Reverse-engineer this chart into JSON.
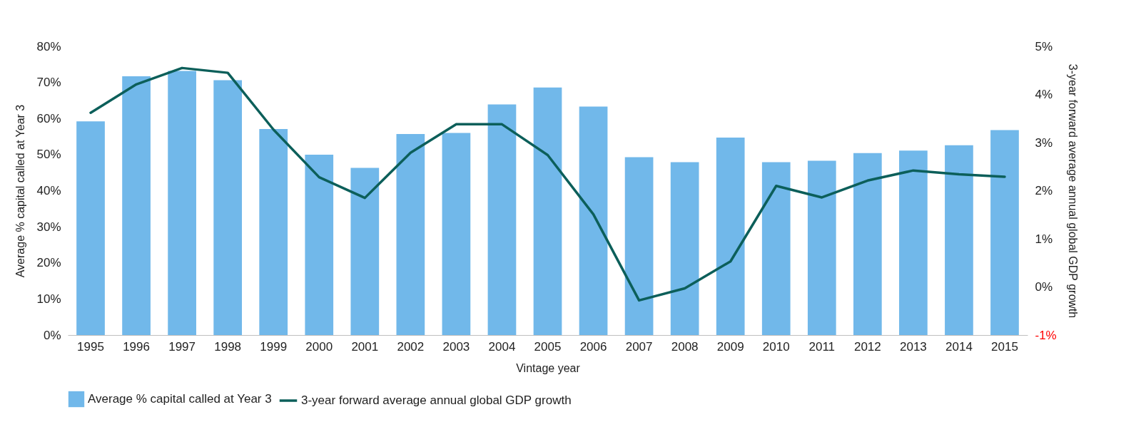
{
  "chart_data": {
    "type": "bar",
    "xlabel": "Vintage year",
    "ylabel": "Average % capital called at Year 3",
    "y2label": "3-year forward average annual global GDP growth",
    "categories": [
      "1995",
      "1996",
      "1997",
      "1998",
      "1999",
      "2000",
      "2001",
      "2002",
      "2003",
      "2004",
      "2005",
      "2006",
      "2007",
      "2008",
      "2009",
      "2010",
      "2011",
      "2012",
      "2013",
      "2014",
      "2015"
    ],
    "series": [
      {
        "name": "Average % capital called at Year 3",
        "color": "#71b8ea",
        "values": [
          59.2,
          71.7,
          73.2,
          70.6,
          57.1,
          50.0,
          46.3,
          55.7,
          56.0,
          63.9,
          68.6,
          63.3,
          49.3,
          47.9,
          54.7,
          47.9,
          48.3,
          50.4,
          51.1,
          52.6,
          56.8
        ]
      },
      {
        "name": "3-year forward average annual global GDP growth",
        "type": "line",
        "axis": "y2",
        "color": "#0c5f5a",
        "values": [
          3.62,
          4.21,
          4.55,
          4.45,
          3.27,
          2.28,
          1.85,
          2.79,
          3.38,
          3.38,
          2.74,
          1.51,
          -0.28,
          -0.03,
          0.53,
          2.1,
          1.86,
          2.21,
          2.42,
          2.34,
          2.29
        ]
      }
    ],
    "ylim": [
      0,
      80
    ],
    "yticks": [
      {
        "value": 0,
        "label": "0%"
      },
      {
        "value": 10,
        "label": "10%"
      },
      {
        "value": 20,
        "label": "20%"
      },
      {
        "value": 30,
        "label": "30%"
      },
      {
        "value": 40,
        "label": "40%"
      },
      {
        "value": 50,
        "label": "50%"
      },
      {
        "value": 60,
        "label": "60%"
      },
      {
        "value": 70,
        "label": "70%"
      },
      {
        "value": 80,
        "label": "80%"
      }
    ],
    "y2lim": [
      -1,
      5
    ],
    "y2ticks": [
      {
        "value": -1,
        "label": "-1%"
      },
      {
        "value": 0,
        "label": "0%"
      },
      {
        "value": 1,
        "label": "1%"
      },
      {
        "value": 2,
        "label": "2%"
      },
      {
        "value": 3,
        "label": "3%"
      },
      {
        "value": 4,
        "label": "4%"
      },
      {
        "value": 5,
        "label": "5%"
      }
    ],
    "legend": "bottom"
  }
}
